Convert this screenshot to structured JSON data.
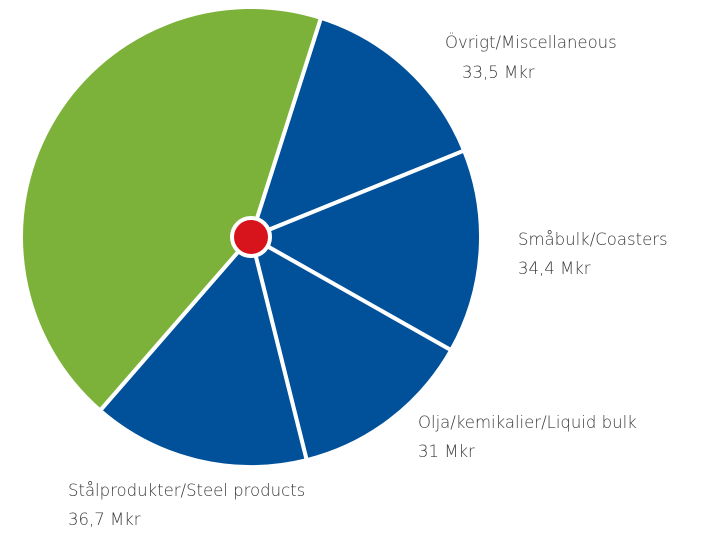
{
  "chart_data": {
    "type": "pie",
    "categories": [
      "Övrigt/Miscellaneous",
      "Småbulk/Coasters",
      "Olja/kemikalier/Liquid bulk",
      "Stålprodukter/Steel products",
      null
    ],
    "values": [
      33.5,
      34.4,
      31,
      36.7,
      104.5
    ],
    "value_labels": [
      "33,5 Mkr",
      "34,4 Mkr",
      "31 Mkr",
      "36,7 Mkr",
      null
    ],
    "colors": [
      "#00509a",
      "#00509a",
      "#00509a",
      "#00509a",
      "#7db23a"
    ],
    "center_color": "#d7141c"
  }
}
